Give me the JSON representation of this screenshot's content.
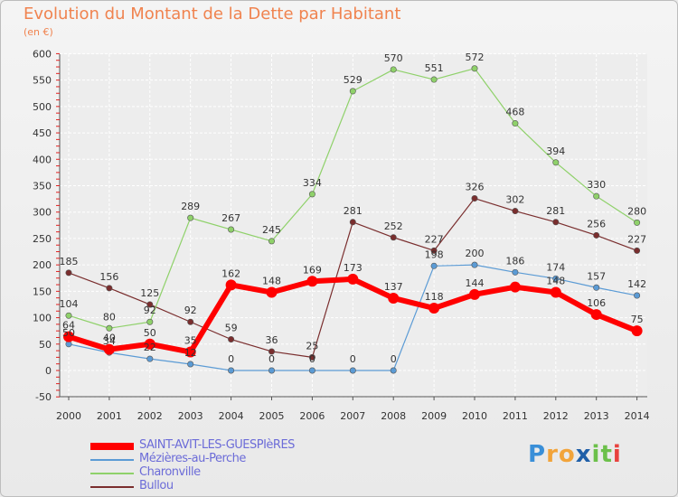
{
  "title": "Evolution du Montant de la Dette par Habitant",
  "subtitle": "(en €)",
  "chart_data": {
    "type": "line",
    "x": [
      "2000",
      "2001",
      "2002",
      "2003",
      "2004",
      "2005",
      "2006",
      "2007",
      "2008",
      "2009",
      "2010",
      "2011",
      "2012",
      "2013",
      "2014"
    ],
    "ylim": [
      -50,
      600
    ],
    "yticks": [
      -50,
      0,
      50,
      100,
      150,
      200,
      250,
      300,
      350,
      400,
      450,
      500,
      550,
      600
    ],
    "grid": true,
    "legend_position": "bottom-left",
    "series": [
      {
        "name": "SAINT-AVIT-LES-GUESPIèRES",
        "color": "#ff0000",
        "values": [
          64,
          40,
          50,
          35,
          162,
          148,
          169,
          173,
          137,
          118,
          144,
          158,
          148,
          106,
          75
        ],
        "labels": [
          "64",
          "40",
          "50",
          "35",
          "162",
          "148",
          "169",
          "173",
          "137",
          "118",
          "144",
          "",
          "148",
          "106",
          "75"
        ]
      },
      {
        "name": "Mézières-au-Perche",
        "color": "#5b9bd5",
        "values": [
          50,
          34,
          22,
          12,
          0,
          0,
          0,
          0,
          0,
          198,
          200,
          186,
          174,
          157,
          142
        ],
        "labels": [
          "50",
          "34",
          "22",
          "12",
          "0",
          "0",
          "0",
          "0",
          "0",
          "198",
          "200",
          "186",
          "174",
          "157",
          "142"
        ]
      },
      {
        "name": "Charonville",
        "color": "#8fd16a",
        "values": [
          104,
          80,
          92,
          289,
          267,
          245,
          334,
          529,
          570,
          551,
          572,
          468,
          394,
          330,
          280
        ],
        "labels": [
          "104",
          "80",
          "92",
          "289",
          "267",
          "245",
          "334",
          "529",
          "570",
          "551",
          "572",
          "468",
          "394",
          "330",
          "280"
        ]
      },
      {
        "name": "Bullou",
        "color": "#7a2e2e",
        "values": [
          185,
          156,
          125,
          92,
          59,
          36,
          25,
          281,
          252,
          227,
          326,
          302,
          281,
          256,
          227
        ],
        "labels": [
          "185",
          "156",
          "125",
          "92",
          "59",
          "36",
          "25",
          "281",
          "252",
          "227",
          "326",
          "302",
          "281",
          "256",
          "227"
        ]
      }
    ]
  },
  "logo": {
    "letters": [
      "P",
      "r",
      "o",
      "x",
      "i",
      "t",
      "i"
    ],
    "colors": [
      "#3a8fd8",
      "#f2a43a",
      "#f2a43a",
      "#1f5fa8",
      "#6cc04a",
      "#6cc04a",
      "#e8433e"
    ]
  }
}
